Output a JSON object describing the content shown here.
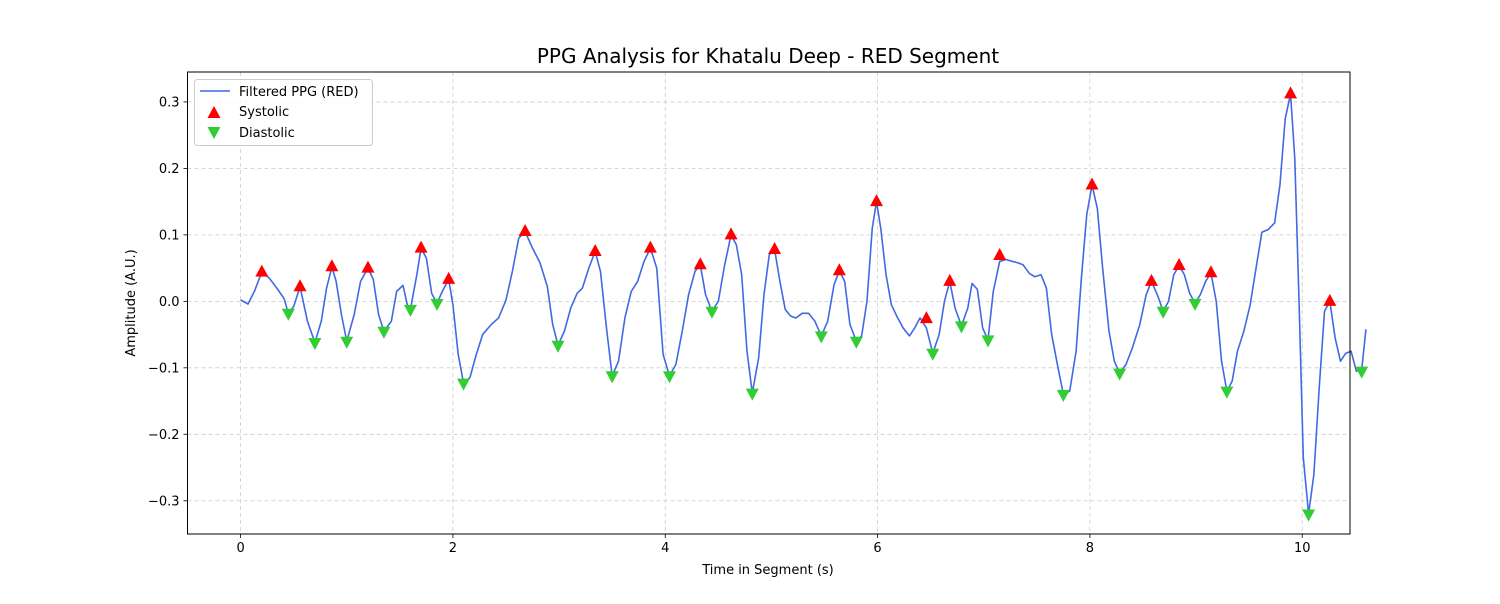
{
  "chart_data": {
    "type": "line",
    "title": "PPG Analysis for Khatalu Deep - RED Segment",
    "xlabel": "Time in Segment (s)",
    "ylabel": "Amplitude (A.U.)",
    "xlim": [
      -0.5,
      10.45
    ],
    "ylim": [
      -0.35,
      0.345
    ],
    "grid": true,
    "legend_position": "top-left",
    "x_ticks": [
      0,
      2,
      4,
      6,
      8,
      10
    ],
    "y_ticks": [
      -0.3,
      -0.2,
      -0.1,
      0.0,
      0.1,
      0.2,
      0.3
    ],
    "x_tick_labels": [
      "0",
      "2",
      "4",
      "6",
      "8",
      "10"
    ],
    "y_tick_labels": [
      "−0.3",
      "−0.2",
      "−0.1",
      "0.0",
      "0.1",
      "0.2",
      "0.3"
    ],
    "colors": {
      "signal": "#4169e1",
      "systolic": "#ff0000",
      "diastolic": "#32cd32",
      "grid": "#cccccc"
    },
    "series": [
      {
        "name": "Filtered PPG (RED)",
        "kind": "line",
        "points": [
          [
            0.0,
            0.002
          ],
          [
            0.07,
            -0.004
          ],
          [
            0.13,
            0.015
          ],
          [
            0.2,
            0.044
          ],
          [
            0.27,
            0.035
          ],
          [
            0.35,
            0.018
          ],
          [
            0.41,
            0.004
          ],
          [
            0.45,
            -0.018
          ],
          [
            0.5,
            -0.008
          ],
          [
            0.56,
            0.022
          ],
          [
            0.63,
            -0.03
          ],
          [
            0.7,
            -0.062
          ],
          [
            0.76,
            -0.03
          ],
          [
            0.81,
            0.02
          ],
          [
            0.86,
            0.052
          ],
          [
            0.9,
            0.03
          ],
          [
            0.95,
            -0.02
          ],
          [
            1.0,
            -0.06
          ],
          [
            1.07,
            -0.02
          ],
          [
            1.13,
            0.03
          ],
          [
            1.2,
            0.05
          ],
          [
            1.25,
            0.033
          ],
          [
            1.3,
            -0.02
          ],
          [
            1.35,
            -0.045
          ],
          [
            1.42,
            -0.03
          ],
          [
            1.47,
            0.015
          ],
          [
            1.53,
            0.024
          ],
          [
            1.57,
            -0.005
          ],
          [
            1.6,
            -0.012
          ],
          [
            1.66,
            0.04
          ],
          [
            1.7,
            0.08
          ],
          [
            1.75,
            0.065
          ],
          [
            1.8,
            0.012
          ],
          [
            1.85,
            -0.003
          ],
          [
            1.9,
            0.015
          ],
          [
            1.96,
            0.033
          ],
          [
            2.0,
            -0.005
          ],
          [
            2.05,
            -0.08
          ],
          [
            2.1,
            -0.123
          ],
          [
            2.16,
            -0.115
          ],
          [
            2.22,
            -0.08
          ],
          [
            2.28,
            -0.05
          ],
          [
            2.36,
            -0.035
          ],
          [
            2.43,
            -0.025
          ],
          [
            2.5,
            0.002
          ],
          [
            2.56,
            0.045
          ],
          [
            2.62,
            0.095
          ],
          [
            2.68,
            0.105
          ],
          [
            2.75,
            0.08
          ],
          [
            2.82,
            0.058
          ],
          [
            2.89,
            0.022
          ],
          [
            2.94,
            -0.035
          ],
          [
            2.99,
            -0.066
          ],
          [
            3.05,
            -0.045
          ],
          [
            3.11,
            -0.01
          ],
          [
            3.17,
            0.012
          ],
          [
            3.22,
            0.02
          ],
          [
            3.28,
            0.05
          ],
          [
            3.34,
            0.075
          ],
          [
            3.39,
            0.045
          ],
          [
            3.45,
            -0.045
          ],
          [
            3.5,
            -0.112
          ],
          [
            3.56,
            -0.09
          ],
          [
            3.62,
            -0.025
          ],
          [
            3.68,
            0.015
          ],
          [
            3.74,
            0.03
          ],
          [
            3.8,
            0.06
          ],
          [
            3.86,
            0.08
          ],
          [
            3.92,
            0.05
          ],
          [
            3.98,
            -0.08
          ],
          [
            4.04,
            -0.112
          ],
          [
            4.1,
            -0.095
          ],
          [
            4.16,
            -0.045
          ],
          [
            4.22,
            0.01
          ],
          [
            4.28,
            0.045
          ],
          [
            4.33,
            0.055
          ],
          [
            4.38,
            0.01
          ],
          [
            4.44,
            -0.015
          ],
          [
            4.5,
            0.0
          ],
          [
            4.56,
            0.055
          ],
          [
            4.62,
            0.1
          ],
          [
            4.67,
            0.085
          ],
          [
            4.72,
            0.04
          ],
          [
            4.77,
            -0.075
          ],
          [
            4.82,
            -0.138
          ],
          [
            4.88,
            -0.085
          ],
          [
            4.93,
            0.01
          ],
          [
            4.98,
            0.07
          ],
          [
            5.03,
            0.078
          ],
          [
            5.08,
            0.03
          ],
          [
            5.13,
            -0.012
          ],
          [
            5.18,
            -0.022
          ],
          [
            5.23,
            -0.025
          ],
          [
            5.29,
            -0.018
          ],
          [
            5.35,
            -0.018
          ],
          [
            5.41,
            -0.03
          ],
          [
            5.47,
            -0.052
          ],
          [
            5.53,
            -0.03
          ],
          [
            5.59,
            0.025
          ],
          [
            5.64,
            0.046
          ],
          [
            5.69,
            0.03
          ],
          [
            5.74,
            -0.035
          ],
          [
            5.8,
            -0.06
          ],
          [
            5.85,
            -0.052
          ],
          [
            5.9,
            0.0
          ],
          [
            5.95,
            0.11
          ],
          [
            5.99,
            0.15
          ],
          [
            6.03,
            0.11
          ],
          [
            6.08,
            0.04
          ],
          [
            6.13,
            -0.005
          ],
          [
            6.18,
            -0.022
          ],
          [
            6.24,
            -0.04
          ],
          [
            6.3,
            -0.052
          ],
          [
            6.35,
            -0.04
          ],
          [
            6.4,
            -0.025
          ],
          [
            6.46,
            -0.04
          ],
          [
            6.52,
            -0.078
          ],
          [
            6.58,
            -0.05
          ],
          [
            6.63,
            0.0
          ],
          [
            6.68,
            0.03
          ],
          [
            6.73,
            -0.01
          ],
          [
            6.79,
            -0.037
          ],
          [
            6.85,
            -0.01
          ],
          [
            6.89,
            0.027
          ],
          [
            6.94,
            0.018
          ],
          [
            6.99,
            -0.04
          ],
          [
            7.04,
            -0.058
          ],
          [
            7.09,
            0.015
          ],
          [
            7.15,
            0.06
          ],
          [
            7.21,
            0.063
          ],
          [
            7.27,
            0.06
          ],
          [
            7.32,
            0.058
          ],
          [
            7.37,
            0.055
          ],
          [
            7.43,
            0.042
          ],
          [
            7.48,
            0.037
          ],
          [
            7.54,
            0.04
          ],
          [
            7.59,
            0.02
          ],
          [
            7.64,
            -0.05
          ],
          [
            7.7,
            -0.1
          ],
          [
            7.75,
            -0.14
          ],
          [
            7.81,
            -0.135
          ],
          [
            7.87,
            -0.075
          ],
          [
            7.92,
            0.035
          ],
          [
            7.97,
            0.13
          ],
          [
            8.02,
            0.175
          ],
          [
            8.07,
            0.14
          ],
          [
            8.12,
            0.05
          ],
          [
            8.18,
            -0.045
          ],
          [
            8.23,
            -0.09
          ],
          [
            8.28,
            -0.108
          ],
          [
            8.34,
            -0.095
          ],
          [
            8.4,
            -0.07
          ],
          [
            8.47,
            -0.035
          ],
          [
            8.53,
            0.01
          ],
          [
            8.58,
            0.03
          ],
          [
            8.64,
            0.008
          ],
          [
            8.69,
            -0.015
          ],
          [
            8.74,
            0.0
          ],
          [
            8.79,
            0.04
          ],
          [
            8.84,
            0.054
          ],
          [
            8.89,
            0.04
          ],
          [
            8.94,
            0.012
          ],
          [
            8.99,
            -0.003
          ],
          [
            9.04,
            0.01
          ],
          [
            9.09,
            0.03
          ],
          [
            9.14,
            0.043
          ],
          [
            9.19,
            0.0
          ],
          [
            9.24,
            -0.09
          ],
          [
            9.29,
            -0.135
          ],
          [
            9.34,
            -0.12
          ],
          [
            9.39,
            -0.075
          ],
          [
            9.45,
            -0.045
          ],
          [
            9.51,
            -0.005
          ],
          [
            9.57,
            0.055
          ],
          [
            9.62,
            0.104
          ],
          [
            9.68,
            0.108
          ],
          [
            9.74,
            0.118
          ],
          [
            9.79,
            0.175
          ],
          [
            9.84,
            0.275
          ],
          [
            9.89,
            0.312
          ],
          [
            9.93,
            0.215
          ],
          [
            9.97,
            0.0
          ],
          [
            10.01,
            -0.235
          ],
          [
            10.06,
            -0.32
          ],
          [
            10.11,
            -0.26
          ],
          [
            10.16,
            -0.13
          ],
          [
            10.21,
            -0.015
          ],
          [
            10.26,
            0.0
          ],
          [
            10.31,
            -0.055
          ],
          [
            10.36,
            -0.09
          ],
          [
            10.41,
            -0.078
          ],
          [
            10.46,
            -0.075
          ],
          [
            10.51,
            -0.105
          ],
          [
            10.56,
            -0.103
          ],
          [
            10.6,
            -0.042
          ]
        ]
      },
      {
        "name": "Systolic",
        "kind": "markers",
        "marker": "triangle-up",
        "points": [
          [
            0.2,
            0.044
          ],
          [
            0.56,
            0.022
          ],
          [
            0.86,
            0.052
          ],
          [
            1.2,
            0.05
          ],
          [
            1.7,
            0.08
          ],
          [
            1.96,
            0.033
          ],
          [
            2.68,
            0.105
          ],
          [
            3.34,
            0.075
          ],
          [
            3.86,
            0.08
          ],
          [
            4.33,
            0.055
          ],
          [
            4.62,
            0.1
          ],
          [
            5.03,
            0.078
          ],
          [
            5.64,
            0.046
          ],
          [
            5.99,
            0.15
          ],
          [
            6.46,
            -0.026
          ],
          [
            6.68,
            0.03
          ],
          [
            7.15,
            0.069
          ],
          [
            8.02,
            0.175
          ],
          [
            8.58,
            0.03
          ],
          [
            8.84,
            0.054
          ],
          [
            9.14,
            0.043
          ],
          [
            9.89,
            0.312
          ],
          [
            10.26,
            0.0
          ]
        ]
      },
      {
        "name": "Diastolic",
        "kind": "markers",
        "marker": "triangle-down",
        "points": [
          [
            0.45,
            -0.018
          ],
          [
            0.7,
            -0.062
          ],
          [
            1.0,
            -0.06
          ],
          [
            1.35,
            -0.045
          ],
          [
            1.6,
            -0.012
          ],
          [
            1.85,
            -0.003
          ],
          [
            2.1,
            -0.123
          ],
          [
            2.99,
            -0.066
          ],
          [
            3.5,
            -0.112
          ],
          [
            4.04,
            -0.112
          ],
          [
            4.44,
            -0.015
          ],
          [
            4.82,
            -0.138
          ],
          [
            5.47,
            -0.052
          ],
          [
            5.8,
            -0.06
          ],
          [
            6.52,
            -0.078
          ],
          [
            6.79,
            -0.037
          ],
          [
            7.04,
            -0.058
          ],
          [
            7.75,
            -0.14
          ],
          [
            8.28,
            -0.108
          ],
          [
            8.69,
            -0.015
          ],
          [
            8.99,
            -0.003
          ],
          [
            9.29,
            -0.135
          ],
          [
            10.06,
            -0.32
          ],
          [
            10.56,
            -0.105
          ]
        ]
      }
    ]
  }
}
